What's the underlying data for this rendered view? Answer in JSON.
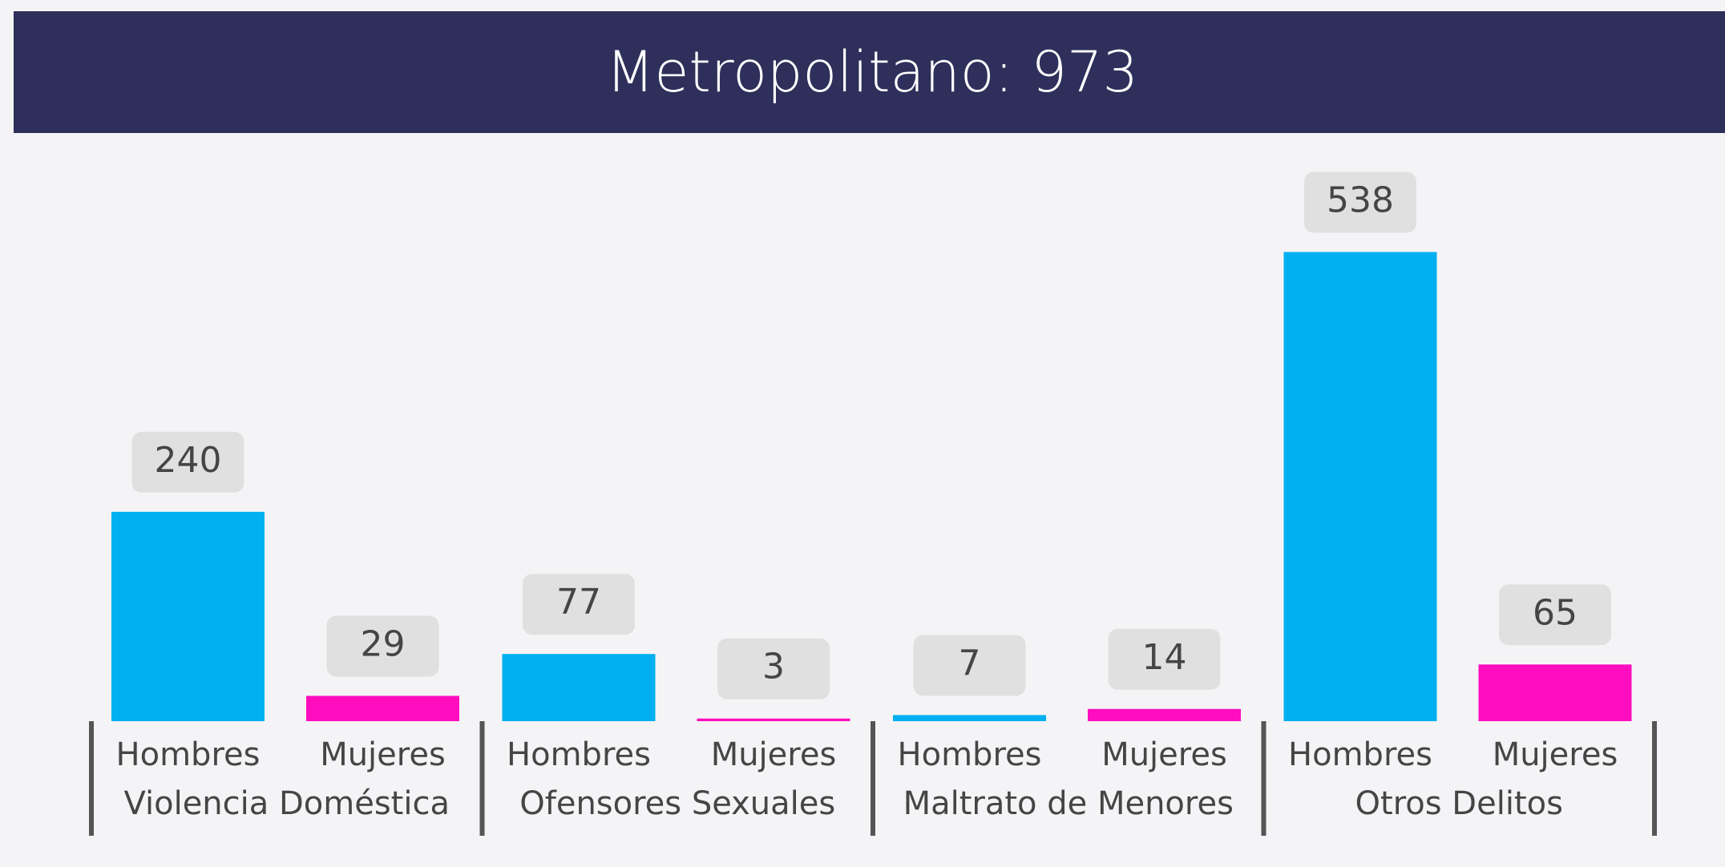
{
  "chart_data": {
    "type": "bar",
    "title": "Metropolitano: 973",
    "categories": [
      "Violencia Doméstica",
      "Ofensores Sexuales",
      "Maltrato de Menores",
      "Otros Delitos"
    ],
    "series": [
      {
        "name": "Hombres",
        "color": "#00b0f0",
        "values": [
          240,
          77,
          7,
          538
        ]
      },
      {
        "name": "Mujeres",
        "color": "#ff0dbf",
        "values": [
          29,
          3,
          14,
          65
        ]
      }
    ],
    "ylim": [
      0,
      600
    ]
  }
}
